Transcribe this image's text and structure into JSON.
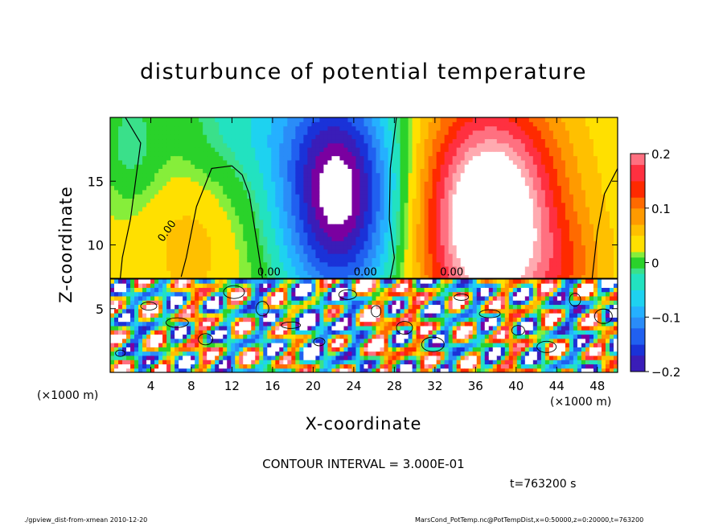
{
  "chart_data": {
    "type": "heatmap",
    "title": "disturbunce of potential temperature",
    "xlabel": "X-coordinate",
    "ylabel": "Z-coordinate",
    "x_unit_left": "(×1000 m)",
    "x_unit_right": "(×1000 m)",
    "xlim": [
      0,
      50
    ],
    "ylim": [
      0,
      20
    ],
    "xticks": [
      "4",
      "8",
      "12",
      "16",
      "20",
      "24",
      "28",
      "32",
      "36",
      "40",
      "44",
      "48"
    ],
    "xtick_values": [
      4,
      8,
      12,
      16,
      20,
      24,
      28,
      32,
      36,
      40,
      44,
      48
    ],
    "yticks": [
      "5",
      "10",
      "15"
    ],
    "ytick_values": [
      5,
      10,
      15
    ],
    "colorbar": {
      "range": [
        -0.2,
        0.2
      ],
      "tick_labels": [
        "0.2",
        "0.1",
        "0",
        "−0.1",
        "−0.2"
      ],
      "tick_values": [
        0.2,
        0.1,
        0,
        -0.1,
        -0.2
      ]
    },
    "contour_labels": [
      "0.00",
      "0.00",
      "0.00",
      "0.00"
    ],
    "colors": {
      "neg": [
        "#7a00a0",
        "#3a1db8",
        "#1a32d8",
        "#2060f0",
        "#2a8cf8",
        "#25b0ff",
        "#1ed2f0",
        "#22e2c0"
      ],
      "pos": [
        "#ffe000",
        "#ffc000",
        "#ff9a00",
        "#ff6a00",
        "#ff2a00",
        "#ff3040",
        "#ff7080",
        "#ffaab0"
      ],
      "zero": "#2ad22a",
      "green_light": "#86ee3a"
    }
  },
  "contour_interval": "CONTOUR INTERVAL = 3.000E-01",
  "time_label": "t=763200 s",
  "footer_left": "./gpview_dist-from-xmean   2010-12-20",
  "footer_right": "MarsCond_PotTemp.nc@PotTempDist,x=0:50000,z=0:20000,t=763200"
}
